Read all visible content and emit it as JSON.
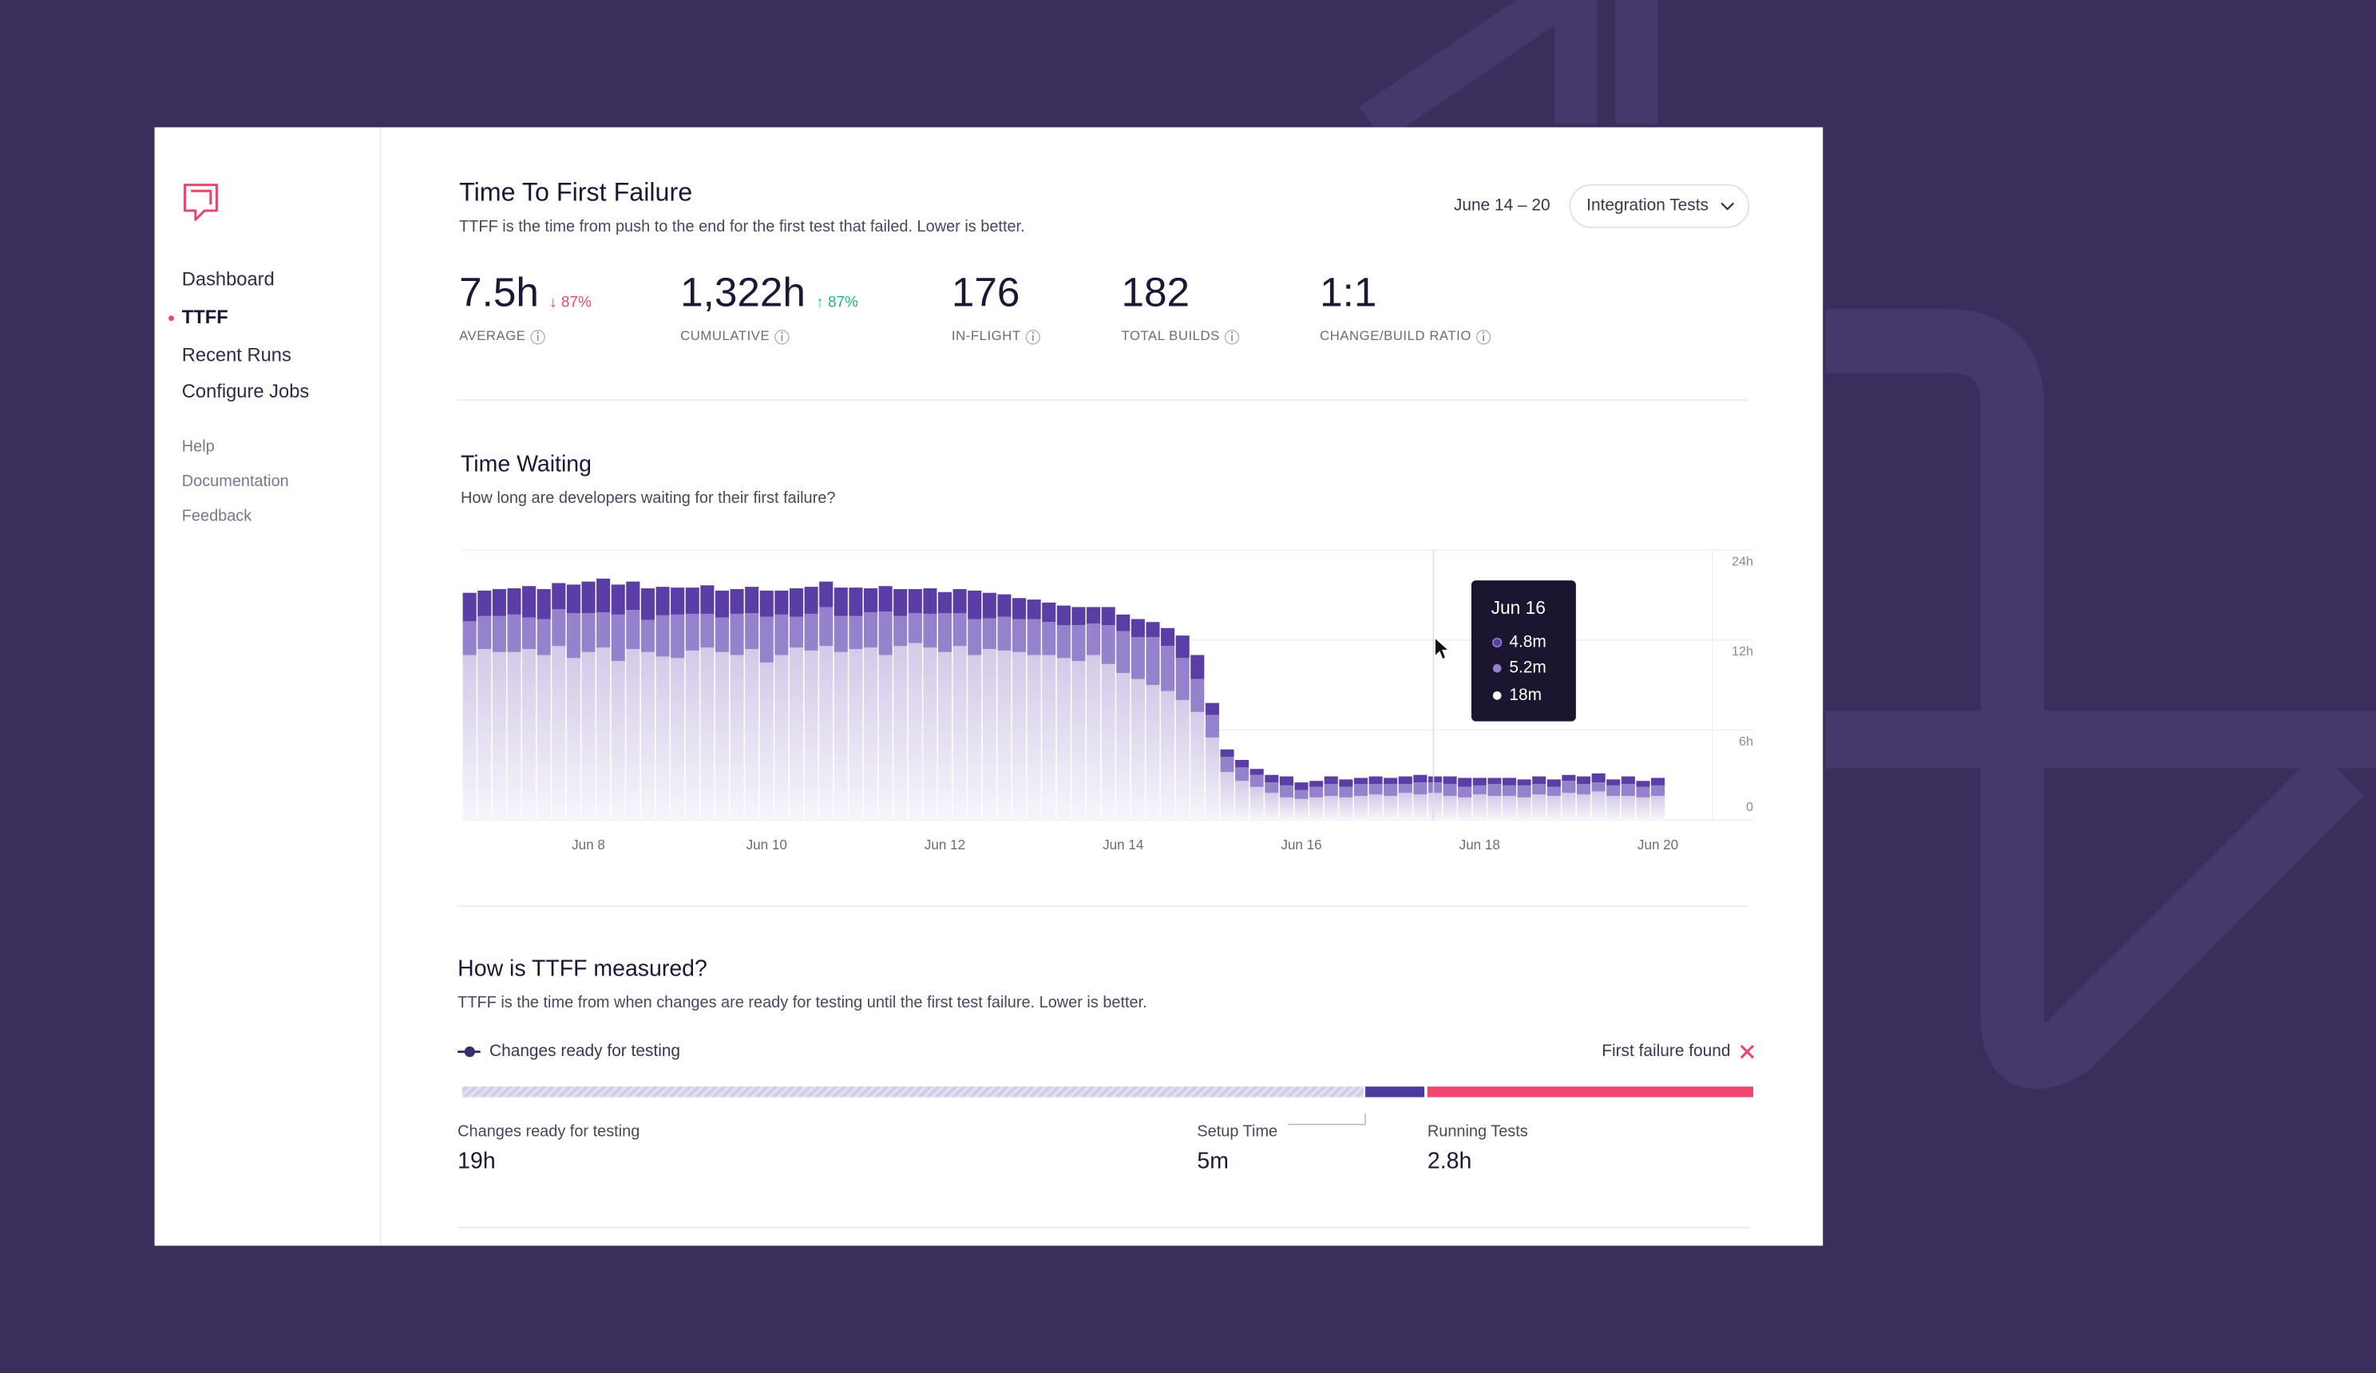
{
  "sidebar": {
    "nav": [
      "Dashboard",
      "TTFF",
      "Recent Runs",
      "Configure Jobs"
    ],
    "links": [
      "Help",
      "Documentation",
      "Feedback"
    ]
  },
  "header": {
    "title": "Time To First Failure",
    "subtitle": "TTFF is the time from push to the end for the first test that failed. Lower is better.",
    "date_range": "June 14 – 20",
    "dropdown": "Integration Tests"
  },
  "stats": [
    {
      "value": "7.5h",
      "change": "↓ 87%",
      "label": "AVERAGE"
    },
    {
      "value": "1,322h",
      "change": "↑ 87%",
      "label": "CUMULATIVE"
    },
    {
      "value": "176",
      "label": "IN-FLIGHT"
    },
    {
      "value": "182",
      "label": "TOTAL BUILDS"
    },
    {
      "value": "1:1",
      "label": "CHANGE/BUILD RATIO"
    }
  ],
  "chart_data": {
    "type": "bar",
    "stacked": true,
    "title": "Time Waiting",
    "subtitle": "How long are developers waiting for their first failure?",
    "categories": [
      null,
      null,
      null,
      null,
      null,
      null,
      null,
      null,
      "Jun 8",
      null,
      null,
      null,
      null,
      null,
      null,
      null,
      null,
      null,
      null,
      null,
      "Jun 10",
      null,
      null,
      null,
      null,
      null,
      null,
      null,
      null,
      null,
      null,
      null,
      "Jun 12",
      null,
      null,
      null,
      null,
      null,
      null,
      null,
      null,
      null,
      null,
      null,
      "Jun 14",
      null,
      null,
      null,
      null,
      null,
      null,
      null,
      null,
      null,
      null,
      null,
      "Jun 16",
      null,
      null,
      null,
      null,
      null,
      null,
      null,
      null,
      null,
      null,
      null,
      "Jun 18",
      null,
      null,
      null,
      null,
      null,
      null,
      null,
      null,
      null,
      null,
      null,
      "Jun 20"
    ],
    "series": [
      {
        "color": "#d6cdea",
        "values": [
          11,
          11.4,
          11.2,
          11.2,
          11.4,
          11,
          11.6,
          10.8,
          11.2,
          11.5,
          10.6,
          11.4,
          11.2,
          10.9,
          10.8,
          11.3,
          11.5,
          11.2,
          11,
          11.4,
          10.5,
          11,
          11.5,
          11.3,
          11.6,
          11.2,
          11.4,
          11.5,
          11,
          11.6,
          11.8,
          11.5,
          11.2,
          11.6,
          11,
          11.4,
          11.3,
          11.2,
          11,
          11,
          10.8,
          10.6,
          11,
          10.4,
          9.8,
          9.4,
          9,
          8.6,
          8,
          7.2,
          5.5,
          3.2,
          2.6,
          2.2,
          1.8,
          1.5,
          1.4,
          1.5,
          1.6,
          1.5,
          1.6,
          1.7,
          1.6,
          1.8,
          1.7,
          1.8,
          1.6,
          1.5,
          1.7,
          1.6,
          1.6,
          1.5,
          1.7,
          1.6,
          1.8,
          1.7,
          1.9,
          1.6,
          1.6,
          1.5,
          1.6
        ]
      },
      {
        "color": "#9482cc",
        "values": [
          3.5,
          3.8,
          4,
          4.2,
          3.6,
          3.8,
          4.5,
          4.8,
          4.4,
          4.2,
          4.8,
          4.6,
          3.5,
          4.4,
          4.6,
          4.2,
          4,
          3.8,
          4.5,
          4.2,
          4.6,
          4.4,
          3.6,
          4.2,
          4.8,
          4,
          3.8,
          4.2,
          4.8,
          3.6,
          3.8,
          4,
          4.4,
          4,
          3.8,
          3.5,
          3.8,
          3.6,
          3.8,
          3.4,
          3.2,
          3.4,
          3.2,
          3.6,
          3.4,
          3,
          3.4,
          3,
          2.8,
          2.2,
          1.5,
          1,
          0.9,
          0.8,
          0.7,
          0.8,
          0.6,
          0.7,
          0.8,
          0.7,
          0.8,
          0.7,
          0.8,
          0.6,
          0.8,
          0.7,
          0.8,
          0.7,
          0.6,
          0.8,
          0.7,
          0.8,
          0.7,
          0.6,
          0.8,
          0.7,
          0.6,
          0.7,
          0.8,
          0.7,
          0.7
        ]
      },
      {
        "color": "#5a3ea5",
        "values": [
          3.8,
          3.4,
          3.6,
          3.5,
          4.2,
          4,
          3.5,
          3.8,
          4.2,
          4.5,
          4,
          3.8,
          4.2,
          3.8,
          3.6,
          3.5,
          3.8,
          3.6,
          3.3,
          3.5,
          3.5,
          3.2,
          3.8,
          3.6,
          3.4,
          3.8,
          3.8,
          3.2,
          3.4,
          3.6,
          3.2,
          3.4,
          2.8,
          3.2,
          3.8,
          3.4,
          3,
          2.8,
          2.6,
          2.6,
          2.6,
          2.4,
          2.2,
          2.4,
          2.2,
          2.4,
          2,
          2,
          1.8,
          1.6,
          0.8,
          0.5,
          0.5,
          0.4,
          0.5,
          0.6,
          0.5,
          0.4,
          0.5,
          0.5,
          0.4,
          0.5,
          0.4,
          0.5,
          0.5,
          0.4,
          0.5,
          0.6,
          0.5,
          0.4,
          0.5,
          0.4,
          0.5,
          0.5,
          0.4,
          0.5,
          0.6,
          0.4,
          0.5,
          0.4,
          0.5
        ]
      }
    ],
    "ylim": [
      0,
      24
    ],
    "yticks": [
      0,
      {
        "value": 6,
        "label": "6h"
      },
      {
        "value": 12,
        "label": "12h"
      },
      {
        "value": 24,
        "label": "24h"
      }
    ],
    "grid": true,
    "tooltip": {
      "title": "Jun 16",
      "items": [
        "4.8m",
        "5.2m",
        "18m"
      ]
    }
  },
  "measure": {
    "title": "How is TTFF measured?",
    "subtitle": "TTFF is the time from when changes are ready for testing until the first test failure. Lower is better.",
    "start_label": "Changes ready for testing",
    "end_label": "First failure found",
    "segments": [
      {
        "label": "Changes ready for testing",
        "value": "19h"
      },
      {
        "label": "Setup Time",
        "value": "5m"
      },
      {
        "label": "Running Tests",
        "value": "2.8h"
      }
    ]
  }
}
